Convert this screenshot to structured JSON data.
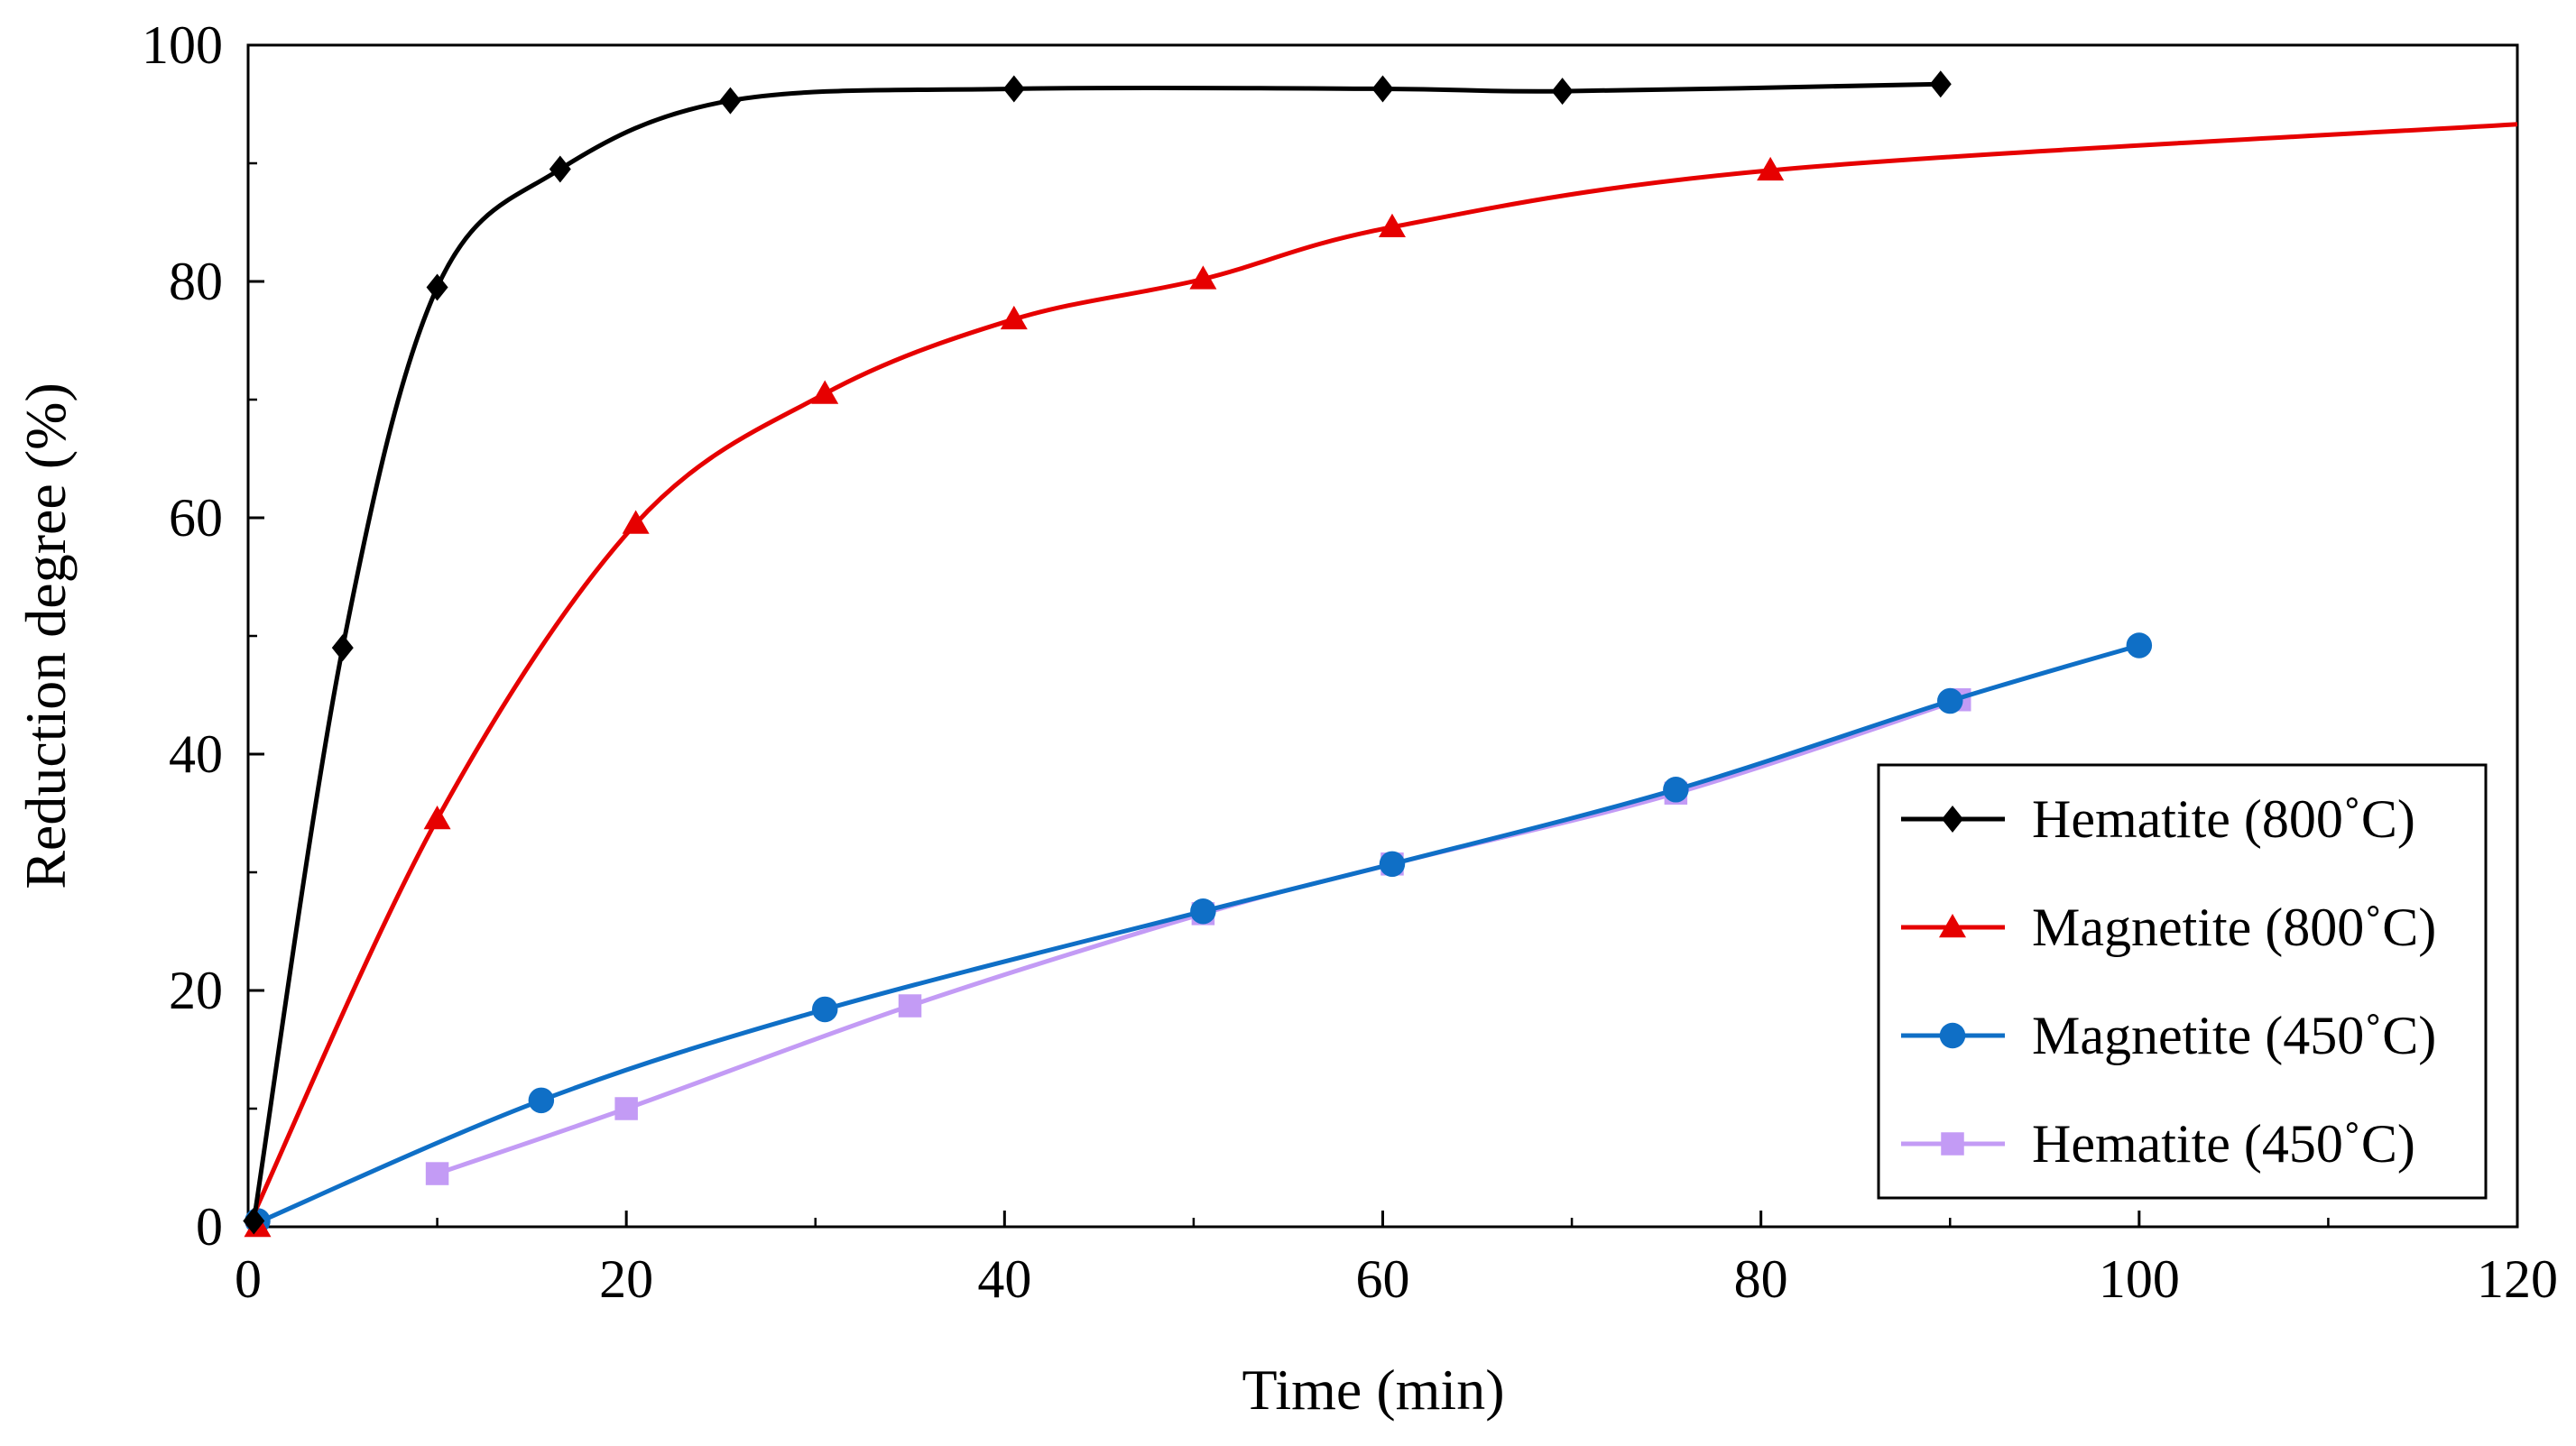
{
  "chart_data": {
    "type": "line",
    "title": "",
    "xlabel": "Time (min)",
    "ylabel": "Reduction degree (%)",
    "xlim": [
      0,
      120
    ],
    "ylim": [
      0,
      100
    ],
    "x_ticks": [
      "0",
      "20",
      "40",
      "60",
      "80",
      "100",
      "120"
    ],
    "y_ticks": [
      "0",
      "20",
      "40",
      "60",
      "80",
      "100"
    ],
    "grid": false,
    "legend_position": "bottom-right",
    "series": [
      {
        "name": "Hematite (800˚C)",
        "color": "#000000",
        "marker": "diamond",
        "x": [
          0.3,
          5,
          10,
          16.5,
          25.5,
          40.5,
          60,
          69.5,
          89.5
        ],
        "y": [
          0.5,
          49,
          79.5,
          89.5,
          95.3,
          96.3,
          96.3,
          96.1,
          96.7
        ],
        "curve_extends_to_x": null
      },
      {
        "name": "Magnetite (800˚C)",
        "color": "#e60000",
        "marker": "triangle",
        "x": [
          0.5,
          10,
          20.5,
          30.5,
          40.5,
          50.5,
          60.5,
          80.5
        ],
        "y": [
          0,
          34.5,
          59.5,
          70.5,
          76.8,
          80.2,
          84.6,
          89.4
        ],
        "curve_extends_to_x": 120,
        "curve_end_y": 93.3
      },
      {
        "name": "Magnetite (450˚C)",
        "color": "#0f6fc6",
        "marker": "circle",
        "x": [
          0.5,
          15.5,
          30.5,
          50.5,
          60.5,
          75.5,
          90,
          100
        ],
        "y": [
          0.5,
          10.7,
          18.4,
          26.7,
          30.7,
          37,
          44.5,
          49.2
        ],
        "curve_extends_to_x": null
      },
      {
        "name": "Hematite (450˚C)",
        "color": "#c39bf5",
        "marker": "square",
        "x": [
          10,
          20,
          35,
          50.5,
          60.5,
          75.5,
          90.5
        ],
        "y": [
          4.5,
          10,
          18.7,
          26.5,
          30.7,
          36.7,
          44.6
        ],
        "curve_extends_to_x": null
      }
    ]
  }
}
